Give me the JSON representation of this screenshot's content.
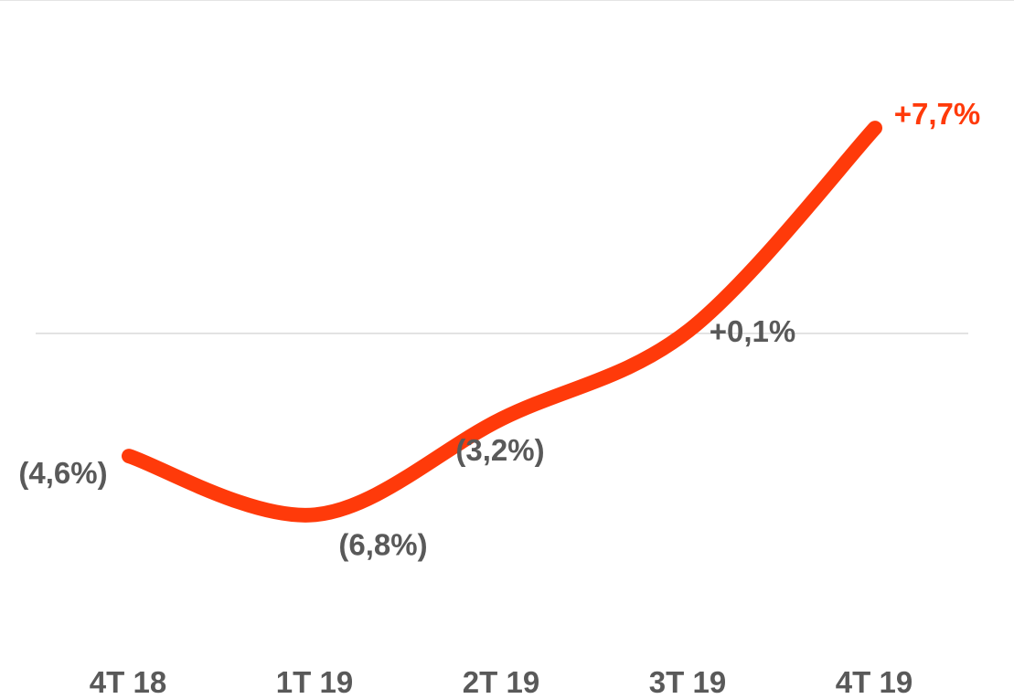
{
  "colors": {
    "line": "#ff3a0a",
    "highlight_label": "#ff3a0a",
    "label": "#595959",
    "baseline": "#d9d9d9"
  },
  "chart_data": {
    "type": "line",
    "categories": [
      "4T 18",
      "1T 19",
      "2T 19",
      "3T 19",
      "4T 19"
    ],
    "values": [
      -4.6,
      -6.8,
      -3.2,
      0.1,
      7.7
    ],
    "data_labels": [
      "(4,6%)",
      "(6,8%)",
      "(3,2%)",
      "+0,1%",
      "+7,7%"
    ],
    "title": "",
    "xlabel": "",
    "ylabel": "",
    "ylim": [
      -8.4,
      12.5
    ],
    "grid": false,
    "legend": "none",
    "smooth": true
  }
}
